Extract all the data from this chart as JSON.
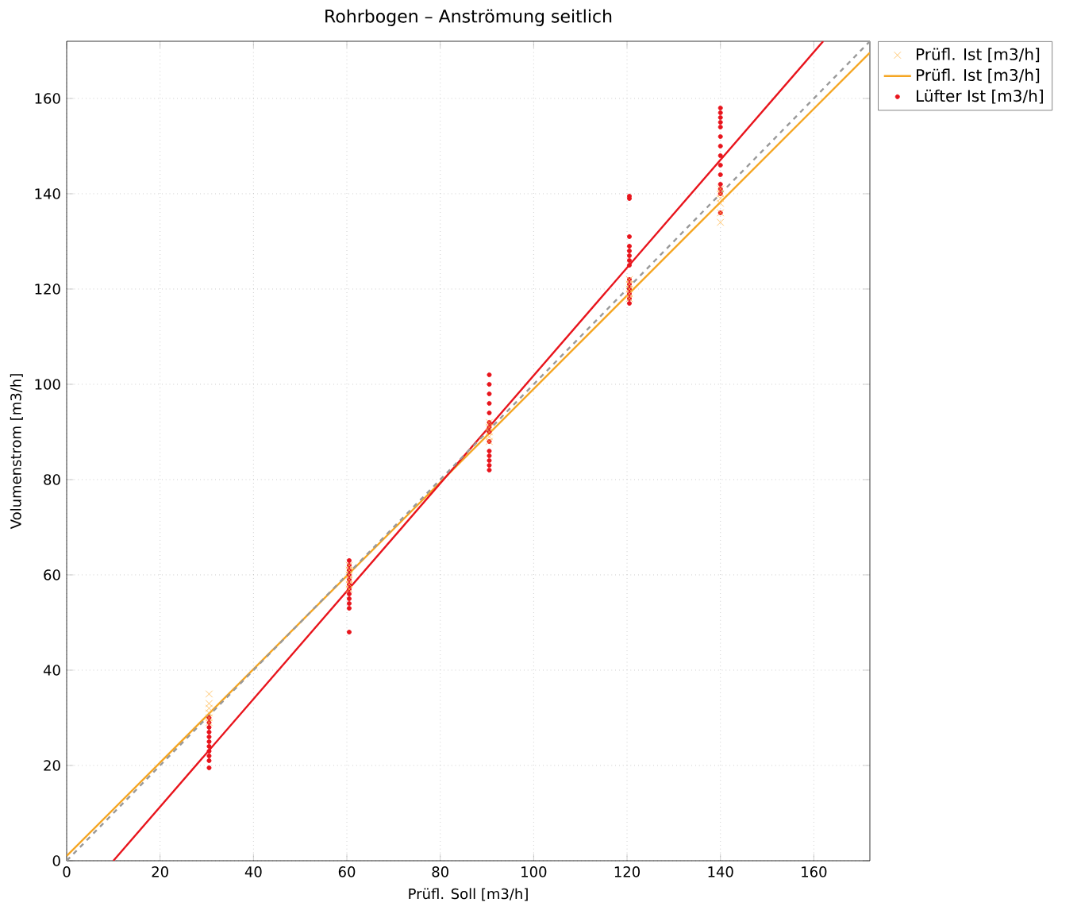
{
  "chart_data": {
    "type": "scatter",
    "title": "Rohrbogen – Anströmung seitlich",
    "xlabel": "Prüfl. Soll [m3/h]",
    "ylabel": "Volumenstrom [m3/h]",
    "xlim": [
      0,
      172
    ],
    "ylim": [
      0,
      172
    ],
    "xticks": [
      0,
      20,
      40,
      60,
      80,
      100,
      120,
      140,
      160
    ],
    "yticks": [
      0,
      20,
      40,
      60,
      80,
      100,
      120,
      140,
      160
    ],
    "grid": true,
    "legend": "top right",
    "series": [
      {
        "name": "Prüfl. Ist [m3/h]",
        "marker": "cross",
        "color": "#ffb74d",
        "x": [
          30.5,
          30.5,
          30.5,
          30.5,
          30.5,
          30.5,
          60.5,
          60.5,
          60.5,
          60.5,
          60.5,
          60.5,
          90.5,
          90.5,
          90.5,
          90.5,
          90.5,
          120.5,
          120.5,
          120.5,
          120.5,
          120.5,
          140,
          140,
          140,
          140,
          140,
          140
        ],
        "values": [
          29,
          30,
          31,
          32,
          33,
          35,
          57,
          58,
          59,
          60,
          61,
          62,
          88,
          89,
          90,
          91,
          92,
          118,
          119,
          120,
          121,
          122,
          134,
          136,
          138,
          139,
          140,
          141
        ]
      },
      {
        "name": "Prüfl. Ist [m3/h]",
        "type": "line",
        "line_style": "solid",
        "color": "#f5a623",
        "x": [
          0,
          172
        ],
        "values": [
          1,
          169.6
        ]
      },
      {
        "name": "Lüfter Ist [m3/h]",
        "marker": "circle",
        "color": "#e8141c",
        "x": [
          30.5,
          30.5,
          30.5,
          30.5,
          30.5,
          30.5,
          30.5,
          30.5,
          30.5,
          30.5,
          30.5,
          60.5,
          60.5,
          60.5,
          60.5,
          60.5,
          60.5,
          60.5,
          60.5,
          60.5,
          60.5,
          60.5,
          60.5,
          90.5,
          90.5,
          90.5,
          90.5,
          90.5,
          90.5,
          90.5,
          90.5,
          90.5,
          90.5,
          90.5,
          90.5,
          90.5,
          90.5,
          120.5,
          120.5,
          120.5,
          120.5,
          120.5,
          120.5,
          120.5,
          120.5,
          120.5,
          120.5,
          120.5,
          120.5,
          120.5,
          120.5,
          140,
          140,
          140,
          140,
          140,
          140,
          140,
          140,
          140,
          140,
          140,
          140,
          140,
          140
        ],
        "values": [
          19.5,
          21,
          22,
          23,
          24,
          25,
          26,
          27,
          28,
          29,
          30,
          48,
          53,
          54,
          55,
          56,
          57,
          58,
          59,
          60,
          61,
          62,
          63,
          82,
          83,
          84,
          85,
          86,
          88,
          90,
          91,
          92,
          94,
          96,
          98,
          100,
          102,
          117,
          118,
          119,
          120,
          121,
          122,
          125,
          126,
          127,
          128,
          129,
          131,
          139,
          139.5,
          136,
          140,
          141,
          142,
          144,
          146,
          148,
          150,
          152,
          154,
          155,
          156,
          157,
          158
        ]
      },
      {
        "type": "line",
        "line_style": "solid",
        "color": "#e8141c",
        "x": [
          10,
          162
        ],
        "values": [
          0,
          172
        ]
      },
      {
        "type": "line",
        "line_style": "dashed",
        "color": "#999999",
        "x": [
          0,
          172
        ],
        "values": [
          0,
          172
        ]
      }
    ]
  }
}
